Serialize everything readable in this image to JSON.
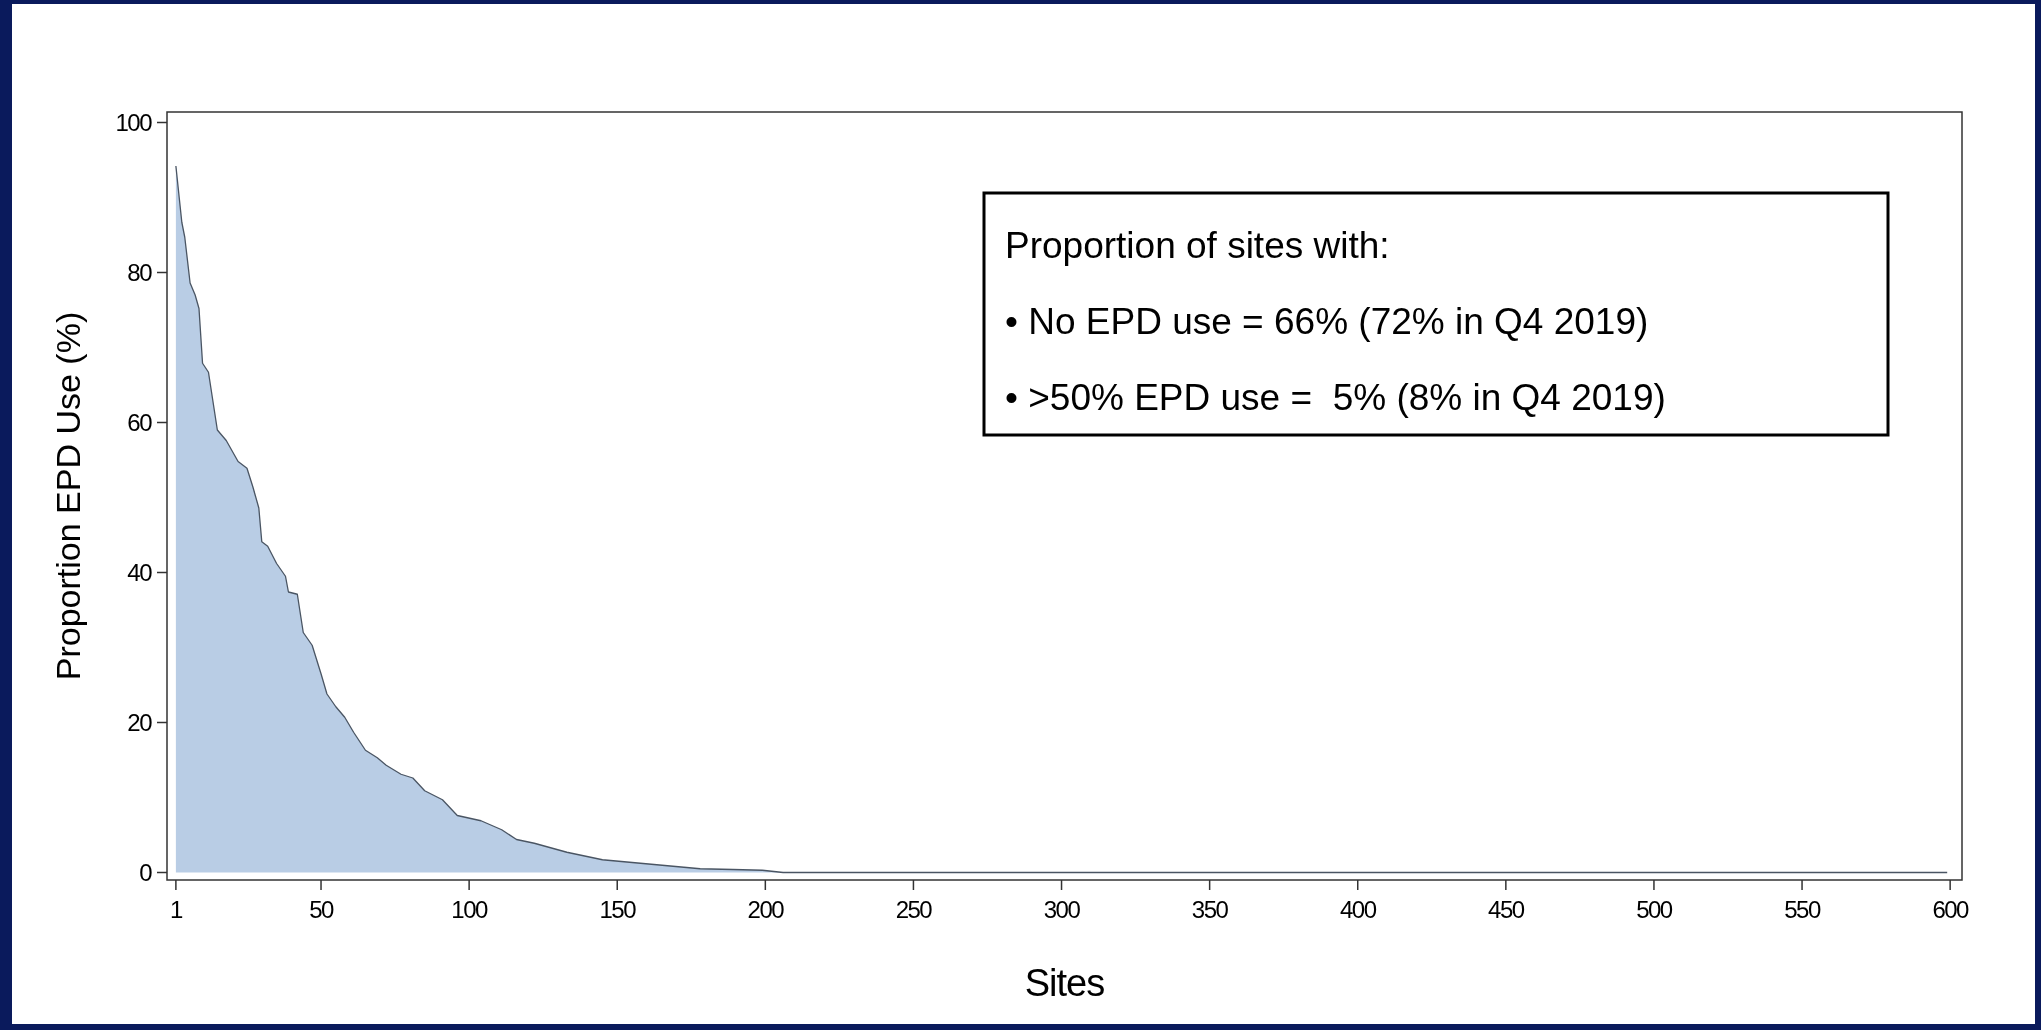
{
  "chart_data": {
    "type": "area",
    "xlabel": "Sites",
    "ylabel": "Proportion EPD Use (%)",
    "annotations": [
      "Proportion of sites with:",
      "• No EPD use = 66% (72% in Q4 2019)",
      "• >50% EPD use =  5% (8% in Q4 2019)"
    ],
    "x": [
      1,
      3,
      4,
      5.8,
      7.5,
      8.8,
      10,
      12,
      15,
      18,
      22,
      25,
      27,
      29,
      30,
      32,
      35,
      38,
      39,
      42,
      44,
      47,
      50,
      52,
      55,
      58,
      61,
      65,
      69,
      72,
      77,
      81,
      85,
      91,
      96,
      104,
      111,
      116,
      122,
      133,
      145,
      156,
      167,
      178,
      189,
      199,
      206,
      599
    ],
    "series": [
      {
        "color": "#b9cde5",
        "values": [
          94.2,
          86.7,
          84.7,
          78.6,
          77,
          75.2,
          67.9,
          66.7,
          59,
          57.6,
          54.8,
          53.9,
          51.4,
          48.6,
          44.1,
          43.5,
          41.2,
          39.5,
          37.4,
          37.1,
          32,
          30.3,
          26.5,
          23.8,
          22.1,
          20.7,
          18.7,
          16.3,
          15.3,
          14.3,
          13.1,
          12.6,
          10.9,
          9.7,
          7.6,
          6.9,
          5.7,
          4.4,
          3.9,
          2.7,
          1.7,
          1.3,
          0.9,
          0.5,
          0.4,
          0.3,
          0,
          0
        ]
      }
    ],
    "xlim": [
      -2,
      604
    ],
    "xticks": [
      1,
      50,
      100,
      150,
      200,
      250,
      300,
      350,
      400,
      450,
      500,
      550,
      600
    ],
    "ylim": [
      -1,
      101.4
    ],
    "yticks": [
      0,
      20,
      40,
      60,
      80,
      100
    ],
    "grid": false
  }
}
